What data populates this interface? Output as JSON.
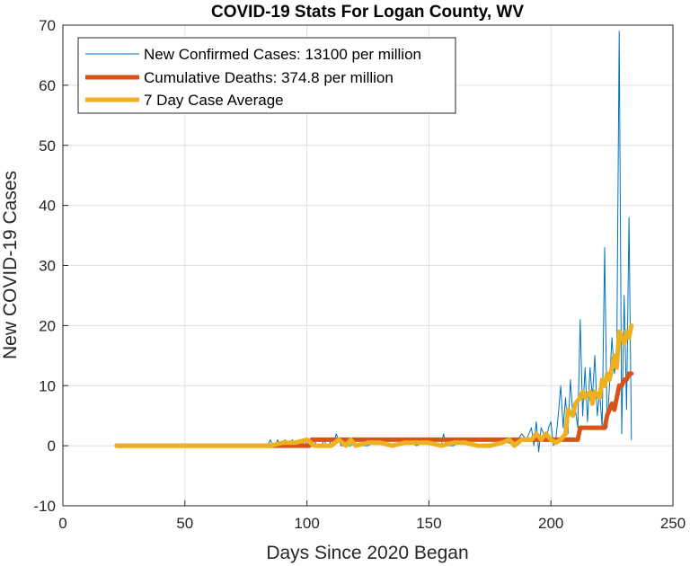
{
  "chart_data": {
    "type": "line",
    "title": "COVID-19 Stats For Logan County, WV",
    "xlabel": "Days Since 2020 Began",
    "ylabel": "New COVID-19 Cases",
    "xlim": [
      0,
      250
    ],
    "ylim": [
      -10,
      70
    ],
    "xticks": [
      0,
      50,
      100,
      150,
      200,
      250
    ],
    "yticks": [
      -10,
      0,
      10,
      20,
      30,
      40,
      50,
      60,
      70
    ],
    "grid": true,
    "legend_position": "top-left",
    "series": [
      {
        "name": "New Confirmed Cases: 13100 per million",
        "color": "#0072BD",
        "x": [
          22,
          30,
          40,
          50,
          60,
          70,
          80,
          84,
          85,
          86,
          87,
          88,
          89,
          90,
          91,
          92,
          93,
          94,
          95,
          96,
          97,
          98,
          99,
          100,
          101,
          102,
          103,
          104,
          105,
          106,
          107,
          108,
          109,
          110,
          111,
          112,
          113,
          114,
          115,
          116,
          117,
          118,
          119,
          120,
          125,
          130,
          135,
          140,
          145,
          150,
          155,
          156,
          157,
          160,
          165,
          170,
          175,
          180,
          185,
          188,
          190,
          192,
          193,
          194,
          195,
          196,
          197,
          198,
          199,
          200,
          201,
          202,
          203,
          204,
          205,
          206,
          207,
          208,
          209,
          210,
          211,
          212,
          213,
          214,
          215,
          216,
          217,
          218,
          219,
          220,
          221,
          222,
          223,
          224,
          225,
          226,
          227,
          228,
          229,
          230,
          231,
          232,
          233
        ],
        "y": [
          0,
          0,
          0,
          0,
          0,
          0,
          0,
          0,
          1,
          0,
          0,
          1,
          0,
          0,
          1,
          0,
          0,
          1,
          0,
          0,
          1,
          0,
          1,
          0,
          1,
          0,
          1,
          0,
          0,
          0,
          1,
          0,
          0,
          1,
          0,
          2,
          1,
          0,
          0,
          1,
          0,
          0,
          1,
          0,
          0,
          1,
          0,
          1,
          0,
          1,
          0,
          2,
          0,
          0,
          1,
          0,
          0,
          1,
          0,
          2,
          1,
          3,
          0,
          4,
          -1,
          3,
          2,
          1,
          3,
          4,
          0,
          1,
          5,
          10,
          3,
          8,
          2,
          11,
          5,
          6,
          3,
          21,
          5,
          13,
          4,
          13,
          8,
          15,
          5,
          9,
          3,
          33,
          3,
          10,
          18,
          12,
          15,
          69,
          2,
          25,
          6,
          38,
          1
        ]
      },
      {
        "name": "Cumulative Deaths: 374.8 per million",
        "color": "#D95319",
        "x": [
          22,
          101,
          102,
          203,
          204,
          211,
          212,
          222,
          223,
          225,
          226,
          227,
          228,
          229,
          230,
          231,
          232,
          233
        ],
        "y": [
          0,
          0,
          1,
          1,
          1,
          1,
          3,
          3,
          5,
          7,
          6,
          8,
          10,
          10,
          11,
          11,
          12,
          12
        ]
      },
      {
        "name": "7 Day Case Average",
        "color": "#EDB120",
        "x": [
          22,
          80,
          85,
          90,
          95,
          100,
          103,
          106,
          110,
          113,
          116,
          118,
          120,
          125,
          130,
          135,
          140,
          145,
          150,
          155,
          160,
          165,
          170,
          175,
          180,
          183,
          185,
          188,
          190,
          192,
          194,
          196,
          198,
          200,
          202,
          204,
          206,
          207,
          209,
          210,
          212,
          213,
          214,
          216,
          217,
          218,
          220,
          221,
          222,
          223,
          224,
          225,
          226,
          227,
          228,
          229,
          230,
          231,
          232,
          233
        ],
        "y": [
          0,
          0,
          0,
          0.5,
          0.5,
          1,
          0,
          0,
          0,
          1,
          0,
          1,
          0,
          0.5,
          0.5,
          0,
          0.5,
          0.5,
          0.5,
          0,
          0.5,
          0.5,
          0,
          0,
          0.5,
          1,
          0,
          1,
          1,
          1,
          2,
          1,
          2,
          1,
          0.5,
          1,
          2,
          6,
          5,
          7,
          8,
          9,
          8,
          9,
          7,
          9,
          8,
          11,
          10,
          12,
          11,
          13,
          15,
          13,
          19,
          18,
          17,
          19,
          18,
          20
        ]
      }
    ]
  }
}
